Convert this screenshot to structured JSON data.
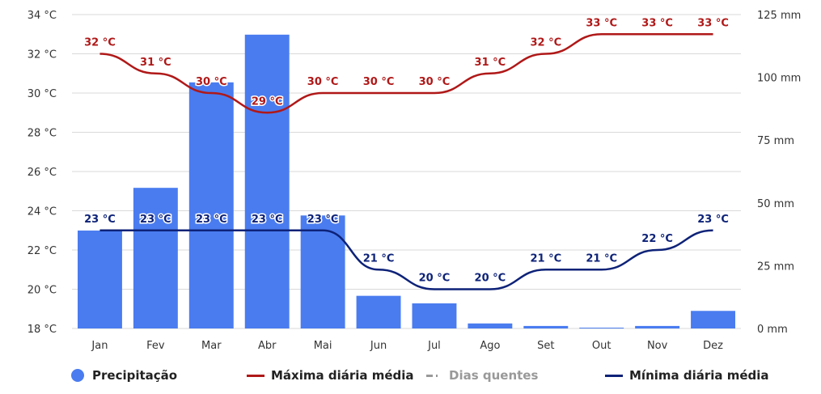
{
  "chart_data": {
    "type": "bar+line",
    "categories": [
      "Jan",
      "Fev",
      "Mar",
      "Abr",
      "Mai",
      "Jun",
      "Jul",
      "Ago",
      "Set",
      "Out",
      "Nov",
      "Dez"
    ],
    "left_axis": {
      "ticks": [
        "18 °C",
        "20 °C",
        "22 °C",
        "24 °C",
        "26 °C",
        "28 °C",
        "30 °C",
        "32 °C",
        "34 °C"
      ],
      "ylim": [
        18,
        34
      ]
    },
    "right_axis": {
      "ticks": [
        "0 mm",
        "25 mm",
        "50 mm",
        "75 mm",
        "100 mm",
        "125 mm"
      ],
      "ylim": [
        0,
        125
      ]
    },
    "grid": true,
    "series": [
      {
        "name": "Precipitação",
        "kind": "bar",
        "axis": "right",
        "color": "#4a7cf0",
        "values": [
          39,
          56,
          98,
          117,
          45,
          13,
          10,
          2,
          1,
          0,
          1,
          7
        ]
      },
      {
        "name": "Máxima diária média",
        "kind": "line",
        "axis": "left",
        "color": "#b01818",
        "values": [
          32,
          31,
          30,
          29,
          30,
          30,
          30,
          31,
          32,
          33,
          33,
          33
        ],
        "labels": [
          "32 °C",
          "31 °C",
          "30 °C",
          "29 °C",
          "30 °C",
          "30 °C",
          "30 °C",
          "31 °C",
          "32 °C",
          "33 °C",
          "33 °C",
          "33 °C"
        ]
      },
      {
        "name": "Mínima diária média",
        "kind": "line",
        "axis": "left",
        "color": "#0d2278",
        "values": [
          23,
          23,
          23,
          23,
          23,
          21,
          20,
          20,
          21,
          21,
          22,
          23
        ],
        "labels": [
          "23 °C",
          "23 °C",
          "23 °C",
          "23 °C",
          "23 °C",
          "21 °C",
          "20 °C",
          "20 °C",
          "21 °C",
          "21 °C",
          "22 °C",
          "23 °C"
        ]
      }
    ],
    "legend": {
      "placement": "bottom",
      "items": [
        {
          "label": "Precipitação",
          "symbol": "dot",
          "color": "#4a7cf0"
        },
        {
          "label": "Máxima diária média",
          "symbol": "line",
          "color": "#b01818"
        },
        {
          "label": "Dias quentes",
          "symbol": "dash",
          "color": "#999999"
        },
        {
          "label": "Mínima diária média",
          "symbol": "line",
          "color": "#0d2278"
        }
      ]
    }
  }
}
